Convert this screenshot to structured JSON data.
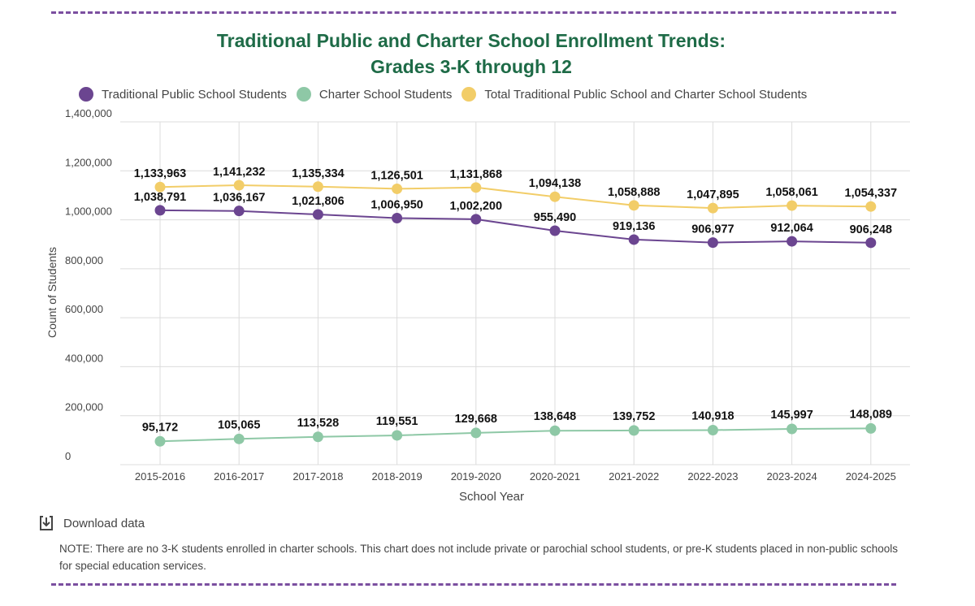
{
  "title_line1": "Traditional Public and Charter School Enrollment Trends:",
  "title_line2": "Grades 3-K through 12",
  "download_label": "Download data",
  "note": "NOTE: There are no 3-K students enrolled in charter schools. This chart does not include private or parochial school students, or pre-K students placed in non-public schools for special education services.",
  "colors": {
    "title": "#1e6b47",
    "rule": "#7b4fa0",
    "traditional": "#6b4590",
    "charter": "#8ec8a6",
    "total": "#f2cd68"
  },
  "chart_data": {
    "type": "line",
    "xlabel": "School Year",
    "ylabel": "Count of Students",
    "ylim": [
      0,
      1400000
    ],
    "yticks": [
      0,
      200000,
      400000,
      600000,
      800000,
      1000000,
      1200000,
      1400000
    ],
    "ytick_labels": [
      "0",
      "200,000",
      "400,000",
      "600,000",
      "800,000",
      "1,000,000",
      "1,200,000",
      "1,400,000"
    ],
    "grid": true,
    "legend_position": "top-left",
    "categories": [
      "2015-2016",
      "2016-2017",
      "2017-2018",
      "2018-2019",
      "2019-2020",
      "2020-2021",
      "2021-2022",
      "2022-2023",
      "2023-2024",
      "2024-2025"
    ],
    "series": [
      {
        "name": "Traditional Public School Students",
        "color": "#6b4590",
        "values": [
          1038791,
          1036167,
          1021806,
          1006950,
          1002200,
          955490,
          919136,
          906977,
          912064,
          906248
        ],
        "labels": [
          "1,038,791",
          "1,036,167",
          "1,021,806",
          "1,006,950",
          "1,002,200",
          "955,490",
          "919,136",
          "906,977",
          "912,064",
          "906,248"
        ]
      },
      {
        "name": "Charter School Students",
        "color": "#8ec8a6",
        "values": [
          95172,
          105065,
          113528,
          119551,
          129668,
          138648,
          139752,
          140918,
          145997,
          148089
        ],
        "labels": [
          "95,172",
          "105,065",
          "113,528",
          "119,551",
          "129,668",
          "138,648",
          "139,752",
          "140,918",
          "145,997",
          "148,089"
        ]
      },
      {
        "name": "Total Traditional Public School and Charter School Students",
        "color": "#f2cd68",
        "values": [
          1133963,
          1141232,
          1135334,
          1126501,
          1131868,
          1094138,
          1058888,
          1047895,
          1058061,
          1054337
        ],
        "labels": [
          "1,133,963",
          "1,141,232",
          "1,135,334",
          "1,126,501",
          "1,131,868",
          "1,094,138",
          "1,058,888",
          "1,047,895",
          "1,058,061",
          "1,054,337"
        ]
      }
    ]
  }
}
